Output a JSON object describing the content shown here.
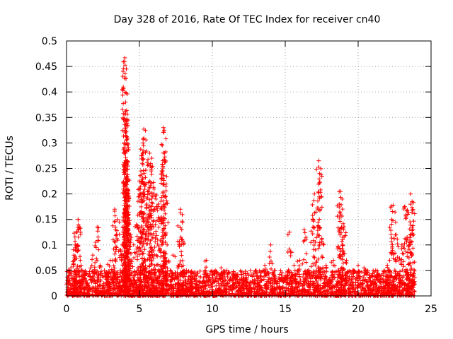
{
  "chart_data": {
    "type": "scatter",
    "title": "Day 328 of 2016, Rate Of TEC Index for receiver cn40",
    "xlabel": "GPS time / hours",
    "ylabel": "ROTI / TECUs",
    "xlim": [
      0,
      25
    ],
    "ylim": [
      0,
      0.5
    ],
    "xticks": [
      0,
      5,
      10,
      15,
      20,
      25
    ],
    "xtick_labels": [
      "0",
      "5",
      "10",
      "15",
      "20",
      "25"
    ],
    "yticks": [
      0,
      0.05,
      0.1,
      0.15,
      0.2,
      0.25,
      0.3,
      0.35,
      0.4,
      0.45,
      0.5
    ],
    "ytick_labels": [
      "0",
      "0.05",
      "0.1",
      "0.15",
      "0.2",
      "0.25",
      "0.3",
      "0.35",
      "0.4",
      "0.45",
      "0.5"
    ],
    "grid": true,
    "marker": "+",
    "color": "#ff0000",
    "series": [
      {
        "name": "ROTI",
        "points": [
          [
            0.1,
            0.03
          ],
          [
            0.3,
            0.055
          ],
          [
            0.5,
            0.08
          ],
          [
            0.6,
            0.1
          ],
          [
            0.7,
            0.125
          ],
          [
            0.8,
            0.15
          ],
          [
            0.85,
            0.13
          ],
          [
            1.0,
            0.06
          ],
          [
            1.3,
            0.045
          ],
          [
            1.8,
            0.08
          ],
          [
            2.1,
            0.135
          ],
          [
            2.3,
            0.06
          ],
          [
            2.6,
            0.05
          ],
          [
            3.0,
            0.07
          ],
          [
            3.2,
            0.11
          ],
          [
            3.3,
            0.17
          ],
          [
            3.5,
            0.15
          ],
          [
            3.7,
            0.09
          ],
          [
            3.9,
            0.12
          ],
          [
            4.0,
            0.467
          ],
          [
            4.02,
            0.436
          ],
          [
            4.05,
            0.38
          ],
          [
            4.07,
            0.345
          ],
          [
            4.08,
            0.335
          ],
          [
            4.1,
            0.305
          ],
          [
            4.12,
            0.285
          ],
          [
            4.13,
            0.262
          ],
          [
            4.15,
            0.21
          ],
          [
            4.18,
            0.2
          ],
          [
            4.2,
            0.175
          ],
          [
            4.25,
            0.16
          ],
          [
            4.3,
            0.14
          ],
          [
            4.4,
            0.12
          ],
          [
            4.6,
            0.1
          ],
          [
            4.8,
            0.14
          ],
          [
            5.0,
            0.21
          ],
          [
            5.1,
            0.245
          ],
          [
            5.2,
            0.26
          ],
          [
            5.25,
            0.3
          ],
          [
            5.3,
            0.327
          ],
          [
            5.35,
            0.22
          ],
          [
            5.5,
            0.18
          ],
          [
            5.7,
            0.28
          ],
          [
            5.8,
            0.245
          ],
          [
            5.85,
            0.27
          ],
          [
            6.0,
            0.2
          ],
          [
            6.1,
            0.14
          ],
          [
            6.3,
            0.18
          ],
          [
            6.5,
            0.155
          ],
          [
            6.6,
            0.265
          ],
          [
            6.65,
            0.33
          ],
          [
            6.7,
            0.325
          ],
          [
            6.8,
            0.195
          ],
          [
            6.9,
            0.1
          ],
          [
            7.3,
            0.08
          ],
          [
            7.8,
            0.17
          ],
          [
            7.9,
            0.13
          ],
          [
            8.0,
            0.06
          ],
          [
            8.5,
            0.04
          ],
          [
            9.0,
            0.045
          ],
          [
            9.6,
            0.07
          ],
          [
            10.2,
            0.05
          ],
          [
            10.6,
            0.055
          ],
          [
            11.0,
            0.05
          ],
          [
            11.5,
            0.04
          ],
          [
            12.0,
            0.03
          ],
          [
            12.5,
            0.04
          ],
          [
            13.0,
            0.03
          ],
          [
            13.6,
            0.06
          ],
          [
            14.0,
            0.1
          ],
          [
            14.3,
            0.05
          ],
          [
            15.0,
            0.04
          ],
          [
            15.3,
            0.125
          ],
          [
            15.6,
            0.06
          ],
          [
            16.0,
            0.07
          ],
          [
            16.3,
            0.13
          ],
          [
            16.6,
            0.05
          ],
          [
            16.9,
            0.15
          ],
          [
            17.0,
            0.2
          ],
          [
            17.3,
            0.265
          ],
          [
            17.35,
            0.24
          ],
          [
            17.5,
            0.11
          ],
          [
            17.8,
            0.06
          ],
          [
            18.3,
            0.07
          ],
          [
            18.7,
            0.18
          ],
          [
            18.8,
            0.205
          ],
          [
            18.9,
            0.19
          ],
          [
            19.0,
            0.13
          ],
          [
            19.2,
            0.07
          ],
          [
            19.6,
            0.05
          ],
          [
            20.0,
            0.06
          ],
          [
            20.4,
            0.055
          ],
          [
            20.8,
            0.04
          ],
          [
            21.2,
            0.05
          ],
          [
            21.6,
            0.04
          ],
          [
            22.0,
            0.06
          ],
          [
            22.3,
            0.15
          ],
          [
            22.4,
            0.178
          ],
          [
            22.6,
            0.12
          ],
          [
            22.8,
            0.07
          ],
          [
            23.0,
            0.1
          ],
          [
            23.2,
            0.175
          ],
          [
            23.4,
            0.16
          ],
          [
            23.6,
            0.2
          ],
          [
            23.7,
            0.185
          ],
          [
            23.8,
            0.12
          ]
        ],
        "baseline_band": [
          0,
          0.05
        ]
      }
    ]
  }
}
